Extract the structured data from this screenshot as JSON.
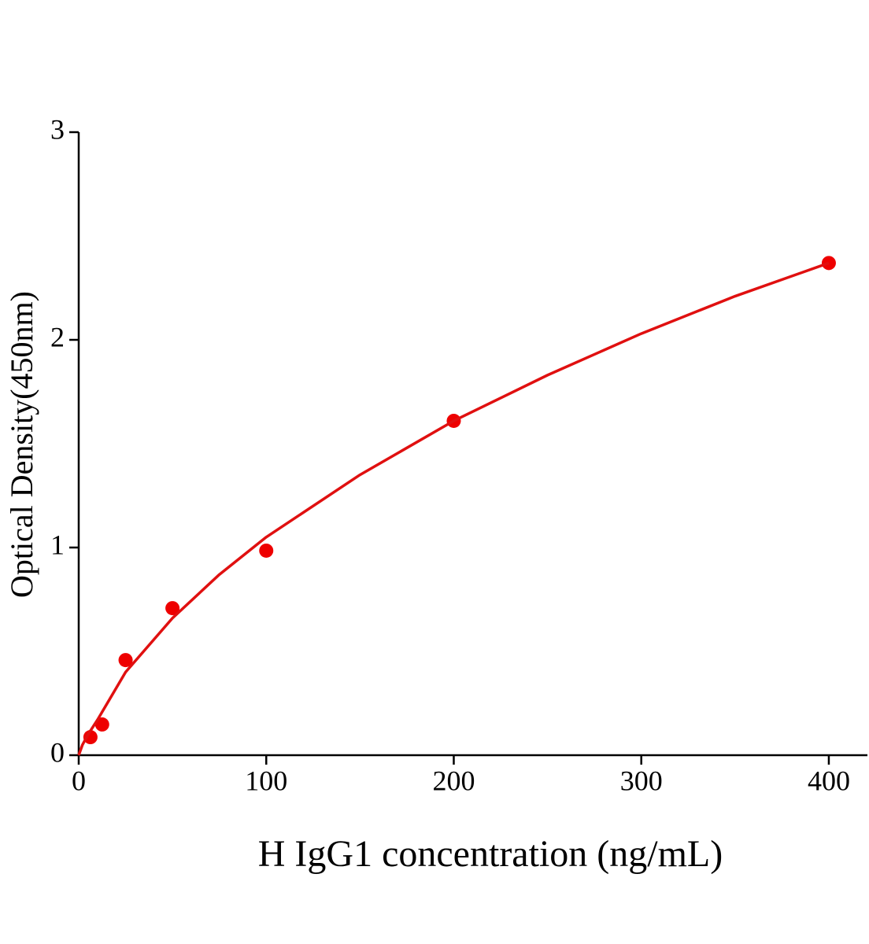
{
  "chart_data": {
    "type": "scatter",
    "x_label": "H IgG1 concentration (ng/mL)",
    "y_label": "Optical Density(450nm)",
    "xlim": [
      0,
      420
    ],
    "xticks": [
      0,
      100,
      200,
      300,
      400
    ],
    "ylim": [
      0,
      3
    ],
    "yticks": [
      0,
      1,
      2,
      3
    ],
    "series": [
      {
        "mode": "markers",
        "color": "#ee0000",
        "x": [
          6.25,
          12.5,
          25,
          50,
          100,
          200,
          400
        ],
        "values": [
          0.087,
          0.148,
          0.458,
          0.708,
          0.985,
          1.61,
          2.37
        ]
      },
      {
        "mode": "line",
        "color": "#e01010",
        "x": [
          0,
          2,
          5,
          10,
          25,
          50,
          75,
          100,
          150,
          200,
          250,
          300,
          350,
          400
        ],
        "values": [
          0,
          0.05,
          0.1,
          0.17,
          0.4,
          0.66,
          0.87,
          1.05,
          1.35,
          1.61,
          1.83,
          2.03,
          2.21,
          2.37
        ]
      }
    ]
  }
}
